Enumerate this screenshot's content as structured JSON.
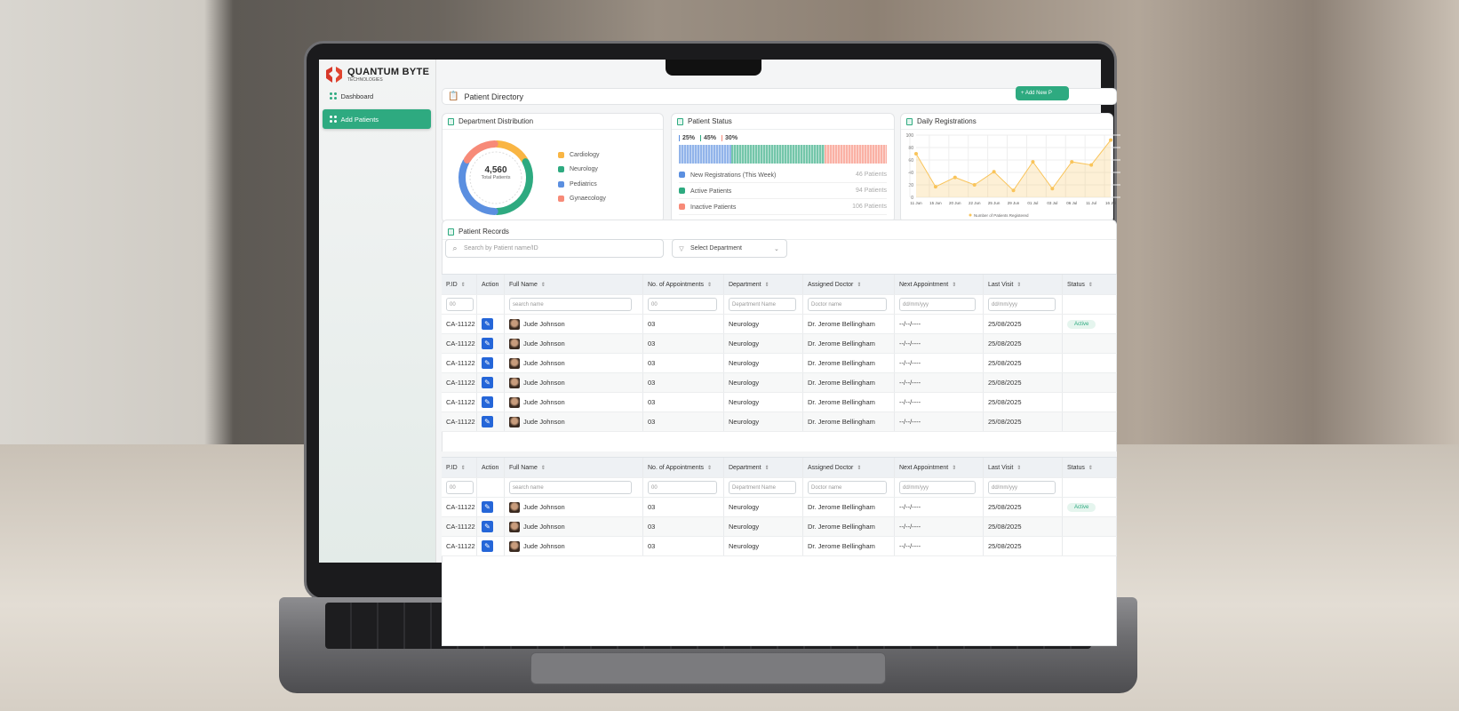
{
  "brand": {
    "name": "QUANTUM BYTE",
    "sub": "TECHNOLOGIES"
  },
  "sidebar": {
    "items": [
      {
        "label": "Dashboard",
        "active": false
      },
      {
        "label": "Add Patients",
        "active": true
      }
    ]
  },
  "header": {
    "title": "Patient Directory",
    "add_button": "+ Add New P"
  },
  "department": {
    "title": "Department Distribution",
    "total": "4,560",
    "total_label": "Total Patients",
    "legend": [
      {
        "label": "Cardiology",
        "color": "#f9b543"
      },
      {
        "label": "Neurology",
        "color": "#2eaa80"
      },
      {
        "label": "Pediatrics",
        "color": "#5b8fe0"
      },
      {
        "label": "Gynaecology",
        "color": "#f78a78"
      }
    ]
  },
  "status": {
    "title": "Patient Status",
    "percents": [
      "25%",
      "45%",
      "30%"
    ],
    "items": [
      {
        "label": "New Registrations (This Week)",
        "count": "46 Patients",
        "color": "#5b8fe0"
      },
      {
        "label": "Active Patients",
        "count": "94 Patients",
        "color": "#2eaa80"
      },
      {
        "label": "Inactive Patients",
        "count": "106 Patients",
        "color": "#f78a78"
      }
    ]
  },
  "chart_data": {
    "type": "area",
    "title": "Daily Registrations",
    "x": [
      "11 Jun",
      "15 Jun",
      "20 Jun",
      "22 Jun",
      "25 Jun",
      "29 Jun",
      "01 Jul",
      "03 Jul",
      "06 Jul",
      "11 Jul",
      "16 Jul"
    ],
    "series": [
      {
        "name": "Number of Patients Registered",
        "values": [
          70,
          17,
          32,
          20,
          41,
          11,
          57,
          14,
          57,
          52,
          92
        ],
        "color": "#f9c45a"
      }
    ],
    "ylim": [
      0,
      100
    ],
    "yticks": [
      0,
      20,
      40,
      60,
      80,
      100
    ],
    "grid": true,
    "legend": "bottom"
  },
  "records": {
    "title": "Patient Records",
    "search_placeholder": "Search by Patient name/ID",
    "department_select": "Select Department",
    "columns": [
      "P.ID",
      "Action",
      "Full Name",
      "No. of Appointments",
      "Department",
      "Assigned Doctor",
      "Next Appointment",
      "Last Visit",
      "Status"
    ],
    "filters": [
      "00",
      "",
      "search name",
      "00",
      "Department Name",
      "Doctor name",
      "dd/mm/yyy",
      "dd/mm/yyy",
      ""
    ],
    "rows": [
      {
        "id": "CA-11122",
        "name": "Jude Johnson",
        "appts": "03",
        "dept": "Neurology",
        "doctor": "Dr. Jerome Bellingham",
        "next": "--/--/----",
        "last": "25/08/2025",
        "status": "Active"
      },
      {
        "id": "CA-11122",
        "name": "Jude Johnson",
        "appts": "03",
        "dept": "Neurology",
        "doctor": "Dr. Jerome Bellingham",
        "next": "--/--/----",
        "last": "25/08/2025",
        "status": ""
      },
      {
        "id": "CA-11122",
        "name": "Jude Johnson",
        "appts": "03",
        "dept": "Neurology",
        "doctor": "Dr. Jerome Bellingham",
        "next": "--/--/----",
        "last": "25/08/2025",
        "status": ""
      },
      {
        "id": "CA-11122",
        "name": "Jude Johnson",
        "appts": "03",
        "dept": "Neurology",
        "doctor": "Dr. Jerome Bellingham",
        "next": "--/--/----",
        "last": "25/08/2025",
        "status": ""
      },
      {
        "id": "CA-11122",
        "name": "Jude Johnson",
        "appts": "03",
        "dept": "Neurology",
        "doctor": "Dr. Jerome Bellingham",
        "next": "--/--/----",
        "last": "25/08/2025",
        "status": ""
      },
      {
        "id": "CA-11122",
        "name": "Jude Johnson",
        "appts": "03",
        "dept": "Neurology",
        "doctor": "Dr. Jerome Bellingham",
        "next": "--/--/----",
        "last": "25/08/2025",
        "status": ""
      }
    ],
    "rows2": [
      {
        "id": "CA-11122",
        "name": "Jude Johnson",
        "appts": "03",
        "dept": "Neurology",
        "doctor": "Dr. Jerome Bellingham",
        "next": "--/--/----",
        "last": "25/08/2025",
        "status": "Active"
      },
      {
        "id": "CA-11122",
        "name": "Jude Johnson",
        "appts": "03",
        "dept": "Neurology",
        "doctor": "Dr. Jerome Bellingham",
        "next": "--/--/----",
        "last": "25/08/2025",
        "status": ""
      },
      {
        "id": "CA-11122",
        "name": "Jude Johnson",
        "appts": "03",
        "dept": "Neurology",
        "doctor": "Dr. Jerome Bellingham",
        "next": "--/--/----",
        "last": "25/08/2025",
        "status": ""
      }
    ]
  }
}
